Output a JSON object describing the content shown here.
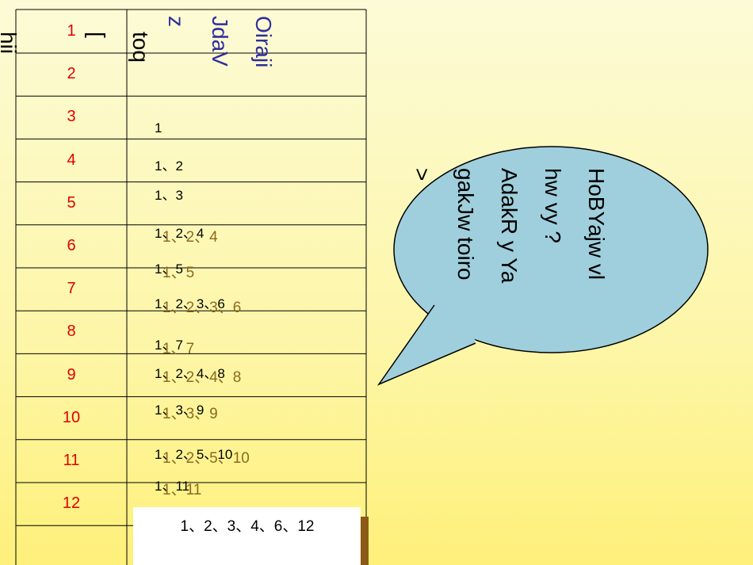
{
  "side_text": "hii",
  "table": {
    "header": [
      [
        "toq",
        "["
      ],
      [
        "Oiraji",
        "JdaV",
        "z"
      ]
    ],
    "numbers": [
      "1",
      "2",
      "3",
      "4",
      "5",
      "6",
      "7",
      "8",
      "9",
      "10",
      "11",
      "12"
    ],
    "divisors": [
      "1",
      "1、2",
      "1、3",
      "1、2、4",
      "1、5",
      "1、2、3、6",
      "1、7",
      "1、2、4、8",
      "1、3、9",
      "1、2、5、10",
      "1、11",
      "1、2、3、4、6、12"
    ]
  },
  "callout": {
    "lines": [
      "HoBYajw vl",
      "hw vy ?",
      "AdakR y Ya",
      "gakJw toiro",
      ">"
    ]
  }
}
